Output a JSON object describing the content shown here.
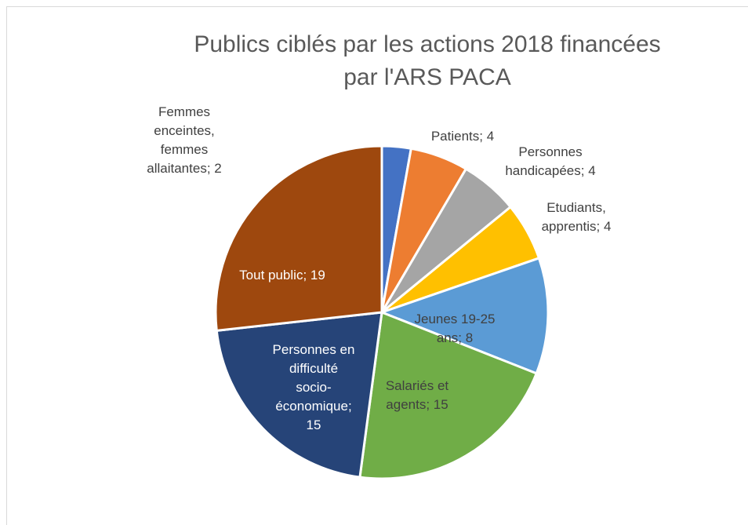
{
  "chart_data": {
    "type": "pie",
    "title": "Publics ciblés par les actions 2018 financées par l'ARS PACA",
    "values": [
      2,
      4,
      4,
      4,
      8,
      15,
      15,
      19
    ],
    "value_labels": [
      "Femmes enceintes, femmes allaitantes; 2",
      "Patients; 4",
      "Personnes handicapées; 4",
      "Etudiants, apprentis; 4",
      "Jeunes 19-25 ans; 8",
      "Salariés et agents; 15",
      "Personnes en difficulté socio-économique; 15",
      "Tout public; 19"
    ],
    "colors": [
      "#4472c4",
      "#ed7d31",
      "#a5a5a5",
      "#ffc000",
      "#5b9bd5",
      "#70ad47",
      "#264478",
      "#9e480e"
    ]
  }
}
